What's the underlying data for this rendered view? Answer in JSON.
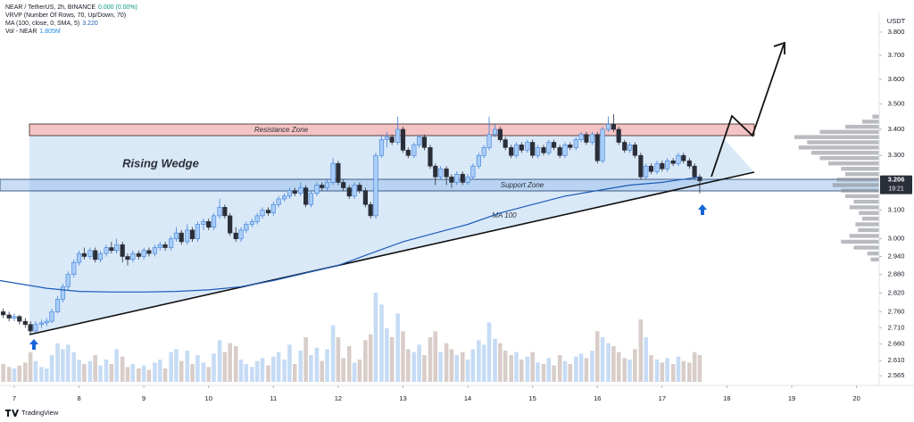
{
  "chart_data": {
    "type": "candlestick",
    "title": "NEAR / TetherUS, 2h, BINANCE",
    "change": "0.000 (0.00%)",
    "indicators": [
      {
        "name": "VRVP (Number Of Rows, 70, Up/Down, 70)"
      },
      {
        "name": "MA (100, close, 0, SMA, 5)",
        "value": "3.220"
      },
      {
        "name": "Vol - NEAR",
        "value": "1.805M"
      }
    ],
    "currency": "USDT",
    "countdown": "19:21",
    "brand": "TradingView",
    "annotations": {
      "resistance": "Resistance Zone",
      "support": "Support Zone",
      "pattern": "Rising Wedge",
      "ma": "MA 100"
    },
    "up_color": "#a9cdf7",
    "up_stroke": "#3d7fd9",
    "down_color": "#2a2e39",
    "x": [
      6.83,
      6.92,
      7,
      7.08,
      7.17,
      7.25,
      7.33,
      7.42,
      7.5,
      7.58,
      7.67,
      7.75,
      7.83,
      7.92,
      8,
      8.08,
      8.17,
      8.25,
      8.33,
      8.42,
      8.5,
      8.58,
      8.67,
      8.75,
      8.83,
      8.92,
      9,
      9.08,
      9.17,
      9.25,
      9.33,
      9.42,
      9.5,
      9.58,
      9.67,
      9.75,
      9.83,
      9.92,
      10,
      10.08,
      10.17,
      10.25,
      10.33,
      10.42,
      10.5,
      10.58,
      10.67,
      10.75,
      10.83,
      10.92,
      11,
      11.08,
      11.17,
      11.25,
      11.33,
      11.42,
      11.5,
      11.58,
      11.67,
      11.75,
      11.83,
      11.92,
      12,
      12.08,
      12.17,
      12.25,
      12.33,
      12.42,
      12.5,
      12.58,
      12.67,
      12.75,
      12.83,
      12.92,
      13,
      13.08,
      13.17,
      13.25,
      13.33,
      13.42,
      13.5,
      13.58,
      13.67,
      13.75,
      13.83,
      13.92,
      14,
      14.08,
      14.17,
      14.25,
      14.33,
      14.42,
      14.5,
      14.58,
      14.67,
      14.75,
      14.83,
      14.92,
      15,
      15.08,
      15.17,
      15.25,
      15.33,
      15.42,
      15.5,
      15.58,
      15.67,
      15.75,
      15.83,
      15.92,
      16,
      16.08,
      16.17,
      16.25,
      16.33,
      16.42,
      16.5,
      16.58,
      16.67,
      16.75,
      16.83,
      16.92,
      17,
      17.08,
      17.17,
      17.25,
      17.33,
      17.42,
      17.5,
      17.58
    ],
    "candles": [
      [
        2.76,
        2.77,
        2.74,
        2.75
      ],
      [
        2.75,
        2.76,
        2.73,
        2.74
      ],
      [
        2.74,
        2.755,
        2.73,
        2.745
      ],
      [
        2.745,
        2.75,
        2.72,
        2.73
      ],
      [
        2.73,
        2.74,
        2.71,
        2.72
      ],
      [
        2.72,
        2.73,
        2.69,
        2.7
      ],
      [
        2.7,
        2.73,
        2.695,
        2.72
      ],
      [
        2.72,
        2.735,
        2.71,
        2.725
      ],
      [
        2.725,
        2.74,
        2.715,
        2.73
      ],
      [
        2.73,
        2.77,
        2.725,
        2.76
      ],
      [
        2.76,
        2.81,
        2.755,
        2.8
      ],
      [
        2.8,
        2.85,
        2.79,
        2.84
      ],
      [
        2.84,
        2.89,
        2.83,
        2.88
      ],
      [
        2.88,
        2.93,
        2.87,
        2.92
      ],
      [
        2.92,
        2.96,
        2.91,
        2.95
      ],
      [
        2.95,
        2.97,
        2.93,
        2.94
      ],
      [
        2.94,
        2.97,
        2.93,
        2.96
      ],
      [
        2.96,
        2.97,
        2.92,
        2.93
      ],
      [
        2.93,
        2.96,
        2.92,
        2.95
      ],
      [
        2.95,
        2.98,
        2.94,
        2.97
      ],
      [
        2.97,
        2.99,
        2.95,
        2.96
      ],
      [
        2.96,
        3.0,
        2.95,
        2.98
      ],
      [
        2.98,
        2.99,
        2.92,
        2.94
      ],
      [
        2.94,
        2.95,
        2.91,
        2.93
      ],
      [
        2.93,
        2.96,
        2.92,
        2.95
      ],
      [
        2.95,
        2.96,
        2.93,
        2.94
      ],
      [
        2.94,
        2.97,
        2.93,
        2.96
      ],
      [
        2.96,
        2.97,
        2.94,
        2.95
      ],
      [
        2.95,
        2.98,
        2.94,
        2.97
      ],
      [
        2.97,
        2.99,
        2.96,
        2.98
      ],
      [
        2.98,
        2.99,
        2.96,
        2.97
      ],
      [
        2.97,
        3.01,
        2.96,
        3.0
      ],
      [
        3.0,
        3.04,
        2.99,
        3.02
      ],
      [
        3.02,
        3.03,
        2.98,
        2.99
      ],
      [
        2.99,
        3.05,
        2.98,
        3.03
      ],
      [
        3.03,
        3.04,
        2.99,
        3.0
      ],
      [
        3.0,
        3.06,
        2.99,
        3.05
      ],
      [
        3.05,
        3.07,
        3.03,
        3.06
      ],
      [
        3.06,
        3.07,
        3.03,
        3.04
      ],
      [
        3.04,
        3.09,
        3.03,
        3.08
      ],
      [
        3.08,
        3.14,
        3.07,
        3.11
      ],
      [
        3.11,
        3.12,
        3.07,
        3.08
      ],
      [
        3.08,
        3.09,
        3.01,
        3.02
      ],
      [
        3.02,
        3.04,
        2.99,
        3.0
      ],
      [
        3.0,
        3.04,
        2.99,
        3.03
      ],
      [
        3.03,
        3.06,
        3.02,
        3.05
      ],
      [
        3.05,
        3.07,
        3.04,
        3.06
      ],
      [
        3.06,
        3.09,
        3.05,
        3.08
      ],
      [
        3.08,
        3.11,
        3.07,
        3.1
      ],
      [
        3.1,
        3.11,
        3.08,
        3.09
      ],
      [
        3.09,
        3.13,
        3.08,
        3.12
      ],
      [
        3.12,
        3.15,
        3.11,
        3.14
      ],
      [
        3.14,
        3.16,
        3.13,
        3.15
      ],
      [
        3.15,
        3.18,
        3.14,
        3.17
      ],
      [
        3.17,
        3.18,
        3.15,
        3.16
      ],
      [
        3.16,
        3.2,
        3.15,
        3.18
      ],
      [
        3.18,
        3.19,
        3.11,
        3.12
      ],
      [
        3.12,
        3.17,
        3.11,
        3.16
      ],
      [
        3.16,
        3.2,
        3.15,
        3.19
      ],
      [
        3.19,
        3.2,
        3.17,
        3.18
      ],
      [
        3.18,
        3.21,
        3.17,
        3.2
      ],
      [
        3.2,
        3.29,
        3.19,
        3.27
      ],
      [
        3.27,
        3.28,
        3.19,
        3.2
      ],
      [
        3.2,
        3.21,
        3.17,
        3.18
      ],
      [
        3.18,
        3.19,
        3.14,
        3.15
      ],
      [
        3.15,
        3.2,
        3.14,
        3.19
      ],
      [
        3.19,
        3.2,
        3.16,
        3.17
      ],
      [
        3.17,
        3.18,
        3.11,
        3.12
      ],
      [
        3.12,
        3.13,
        3.07,
        3.08
      ],
      [
        3.08,
        3.31,
        3.07,
        3.3
      ],
      [
        3.3,
        3.38,
        3.29,
        3.36
      ],
      [
        3.36,
        3.39,
        3.33,
        3.37
      ],
      [
        3.37,
        3.38,
        3.34,
        3.35
      ],
      [
        3.35,
        3.45,
        3.34,
        3.4
      ],
      [
        3.4,
        3.41,
        3.31,
        3.32
      ],
      [
        3.32,
        3.33,
        3.29,
        3.3
      ],
      [
        3.3,
        3.35,
        3.29,
        3.34
      ],
      [
        3.34,
        3.38,
        3.33,
        3.37
      ],
      [
        3.37,
        3.38,
        3.32,
        3.33
      ],
      [
        3.33,
        3.34,
        3.25,
        3.26
      ],
      [
        3.26,
        3.27,
        3.19,
        3.22
      ],
      [
        3.22,
        3.26,
        3.21,
        3.25
      ],
      [
        3.25,
        3.26,
        3.19,
        3.22
      ],
      [
        3.22,
        3.23,
        3.18,
        3.2
      ],
      [
        3.2,
        3.24,
        3.19,
        3.23
      ],
      [
        3.23,
        3.24,
        3.19,
        3.2
      ],
      [
        3.2,
        3.23,
        3.19,
        3.22
      ],
      [
        3.22,
        3.27,
        3.21,
        3.26
      ],
      [
        3.26,
        3.31,
        3.25,
        3.3
      ],
      [
        3.3,
        3.34,
        3.29,
        3.33
      ],
      [
        3.33,
        3.45,
        3.32,
        3.38
      ],
      [
        3.38,
        3.42,
        3.37,
        3.4
      ],
      [
        3.4,
        3.41,
        3.35,
        3.36
      ],
      [
        3.36,
        3.37,
        3.32,
        3.33
      ],
      [
        3.33,
        3.34,
        3.29,
        3.3
      ],
      [
        3.3,
        3.35,
        3.29,
        3.34
      ],
      [
        3.34,
        3.35,
        3.31,
        3.32
      ],
      [
        3.32,
        3.36,
        3.31,
        3.35
      ],
      [
        3.35,
        3.36,
        3.29,
        3.3
      ],
      [
        3.3,
        3.34,
        3.29,
        3.33
      ],
      [
        3.33,
        3.34,
        3.3,
        3.31
      ],
      [
        3.31,
        3.36,
        3.3,
        3.35
      ],
      [
        3.35,
        3.36,
        3.32,
        3.33
      ],
      [
        3.33,
        3.34,
        3.29,
        3.3
      ],
      [
        3.3,
        3.35,
        3.29,
        3.34
      ],
      [
        3.34,
        3.35,
        3.32,
        3.33
      ],
      [
        3.33,
        3.37,
        3.32,
        3.36
      ],
      [
        3.36,
        3.39,
        3.35,
        3.38
      ],
      [
        3.38,
        3.39,
        3.34,
        3.35
      ],
      [
        3.35,
        3.39,
        3.34,
        3.38
      ],
      [
        3.38,
        3.39,
        3.27,
        3.28
      ],
      [
        3.28,
        3.41,
        3.27,
        3.4
      ],
      [
        3.4,
        3.45,
        3.39,
        3.42
      ],
      [
        3.42,
        3.46,
        3.39,
        3.4
      ],
      [
        3.4,
        3.41,
        3.34,
        3.35
      ],
      [
        3.35,
        3.36,
        3.31,
        3.32
      ],
      [
        3.32,
        3.35,
        3.31,
        3.34
      ],
      [
        3.34,
        3.35,
        3.29,
        3.3
      ],
      [
        3.3,
        3.31,
        3.21,
        3.22
      ],
      [
        3.22,
        3.27,
        3.21,
        3.26
      ],
      [
        3.26,
        3.27,
        3.23,
        3.24
      ],
      [
        3.24,
        3.28,
        3.23,
        3.27
      ],
      [
        3.27,
        3.28,
        3.24,
        3.25
      ],
      [
        3.25,
        3.29,
        3.24,
        3.28
      ],
      [
        3.28,
        3.29,
        3.26,
        3.27
      ],
      [
        3.27,
        3.31,
        3.26,
        3.3
      ],
      [
        3.3,
        3.31,
        3.27,
        3.28
      ],
      [
        3.28,
        3.29,
        3.25,
        3.26
      ],
      [
        3.26,
        3.27,
        3.21,
        3.22
      ],
      [
        3.22,
        3.23,
        3.16,
        3.206
      ]
    ],
    "volume": {
      "up_color": "#c6dcf5",
      "down_color": "#d9cdc9",
      "values": [
        1.2,
        1.0,
        0.9,
        1.1,
        1.3,
        2.0,
        1.4,
        1.0,
        0.9,
        1.8,
        2.6,
        2.2,
        2.5,
        2.0,
        1.5,
        1.2,
        1.4,
        1.8,
        1.1,
        1.5,
        1.2,
        2.2,
        1.7,
        1.0,
        1.2,
        0.9,
        1.1,
        0.8,
        1.3,
        1.5,
        0.9,
        2.0,
        2.2,
        1.4,
        2.1,
        1.2,
        1.8,
        1.3,
        1.0,
        1.9,
        2.8,
        2.0,
        2.6,
        2.4,
        1.5,
        1.2,
        1.0,
        1.4,
        1.6,
        1.1,
        1.7,
        2.0,
        1.5,
        2.5,
        1.2,
        2.1,
        3.0,
        1.8,
        2.3,
        1.4,
        2.2,
        3.8,
        3.0,
        1.6,
        2.4,
        1.3,
        1.5,
        2.8,
        3.2,
        6.0,
        5.2,
        3.6,
        3.0,
        4.6,
        3.4,
        2.2,
        2.0,
        2.5,
        1.8,
        3.0,
        3.4,
        2.0,
        2.6,
        2.2,
        1.8,
        2.0,
        1.5,
        2.2,
        2.8,
        2.5,
        4.0,
        2.9,
        2.6,
        2.1,
        1.8,
        2.0,
        1.5,
        1.7,
        2.0,
        1.3,
        1.2,
        1.6,
        1.1,
        1.8,
        1.4,
        1.2,
        1.7,
        1.9,
        1.6,
        2.1,
        3.4,
        3.0,
        2.6,
        2.4,
        2.0,
        1.6,
        1.5,
        2.2,
        4.2,
        3.0,
        1.8,
        1.5,
        1.3,
        1.6,
        1.2,
        1.7,
        1.4,
        1.3,
        2.0,
        1.805
      ]
    },
    "ma": {
      "color": "#1e5bb8",
      "x": [
        6.78,
        7.5,
        8,
        8.5,
        9,
        9.5,
        10,
        10.5,
        11,
        11.5,
        12,
        12.5,
        13,
        13.5,
        14,
        14.5,
        15,
        15.5,
        16,
        16.5,
        17,
        17.58
      ],
      "values": [
        2.86,
        2.835,
        2.825,
        2.823,
        2.823,
        2.825,
        2.83,
        2.84,
        2.86,
        2.885,
        2.91,
        2.95,
        2.99,
        3.02,
        3.05,
        3.09,
        3.12,
        3.15,
        3.17,
        3.19,
        3.2,
        3.22
      ]
    },
    "volume_profile": {
      "color": "#8a8d96",
      "prices": [
        2.93,
        2.95,
        2.97,
        2.99,
        3.01,
        3.03,
        3.05,
        3.07,
        3.09,
        3.11,
        3.13,
        3.15,
        3.17,
        3.19,
        3.21,
        3.23,
        3.25,
        3.27,
        3.29,
        3.31,
        3.33,
        3.35,
        3.37,
        3.39,
        3.41,
        3.43,
        3.45
      ],
      "values": [
        10,
        14,
        30,
        45,
        35,
        25,
        28,
        20,
        24,
        35,
        30,
        40,
        45,
        55,
        50,
        40,
        45,
        60,
        70,
        80,
        95,
        85,
        100,
        70,
        40,
        20,
        8
      ]
    },
    "yscale": "log",
    "xlim": [
      6.78,
      20.35
    ],
    "xticks": [
      7,
      8,
      9,
      10,
      11,
      12,
      13,
      14,
      15,
      16,
      17,
      18,
      19,
      20
    ],
    "ylim": [
      2.537,
      3.886
    ],
    "yticks": [
      {
        "value": 3.8,
        "label": "3.800"
      },
      {
        "value": 3.7,
        "label": "3.700"
      },
      {
        "value": 3.6,
        "label": "3.600"
      },
      {
        "value": 3.5,
        "label": "3.500"
      },
      {
        "value": 3.4,
        "label": "3.400"
      },
      {
        "value": 3.3,
        "label": "3.300"
      },
      {
        "value": 3.1,
        "label": "3.100"
      },
      {
        "value": 3.0,
        "label": "3.000"
      },
      {
        "value": 2.94,
        "label": "2.940"
      },
      {
        "value": 2.88,
        "label": "2.880"
      },
      {
        "value": 2.82,
        "label": "2.820"
      },
      {
        "value": 2.76,
        "label": "2.760"
      },
      {
        "value": 2.71,
        "label": "2.710"
      },
      {
        "value": 2.66,
        "label": "2.660"
      },
      {
        "value": 2.61,
        "label": "2.610"
      },
      {
        "value": 2.565,
        "label": "2.565"
      }
    ]
  }
}
